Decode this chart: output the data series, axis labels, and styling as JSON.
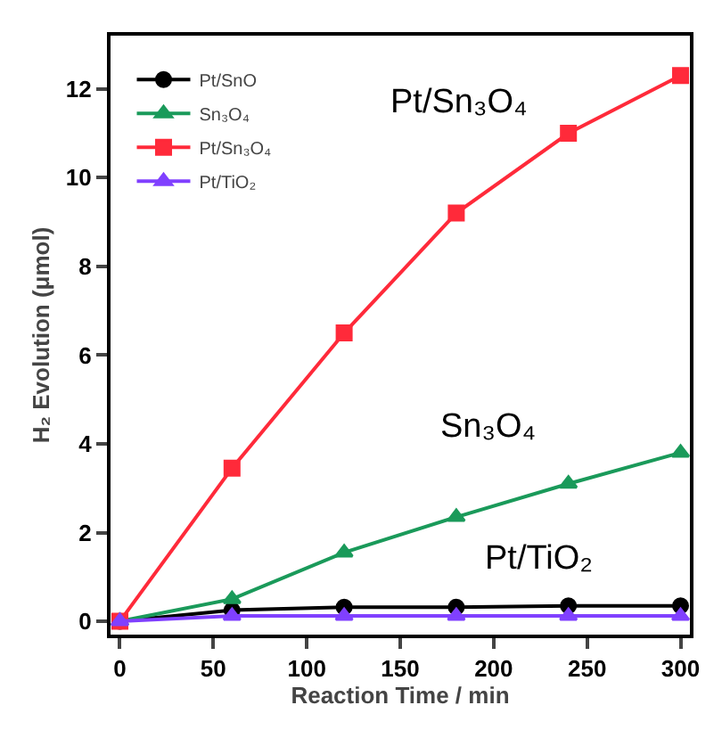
{
  "chart_data": {
    "type": "line",
    "xlabel": "Reaction Time / min",
    "ylabel": "H₂ Evolution (μmol)",
    "x": [
      0,
      60,
      120,
      180,
      240,
      300
    ],
    "series": [
      {
        "name": "Pt/SnO",
        "color": "#000000",
        "marker": "circle",
        "values": [
          0,
          0.25,
          0.32,
          0.32,
          0.35,
          0.35
        ]
      },
      {
        "name": "Sn₃O₄",
        "color": "#1a9a5a",
        "marker": "triangle",
        "values": [
          0,
          0.5,
          1.55,
          2.35,
          3.1,
          3.8
        ]
      },
      {
        "name": "Pt/Sn₃O₄",
        "color": "#ff2a3a",
        "marker": "square",
        "values": [
          0,
          3.45,
          6.5,
          9.2,
          11.0,
          12.3
        ]
      },
      {
        "name": "Pt/TiO₂",
        "color": "#8040ff",
        "marker": "triangle",
        "values": [
          0,
          0.12,
          0.12,
          0.12,
          0.12,
          0.12
        ]
      }
    ],
    "xlim": [
      -5,
      305
    ],
    "xticks": [
      0,
      50,
      100,
      150,
      200,
      250,
      300
    ],
    "ylim": [
      -0.3,
      13.2
    ],
    "yticks": [
      0,
      2,
      4,
      6,
      8,
      10,
      12
    ],
    "grid": false,
    "legend": "top left",
    "line_style": "solid",
    "annotations": [
      "Pt/Sn₃O₄",
      "Sn₃O₄",
      "Pt/TiO₂"
    ]
  }
}
